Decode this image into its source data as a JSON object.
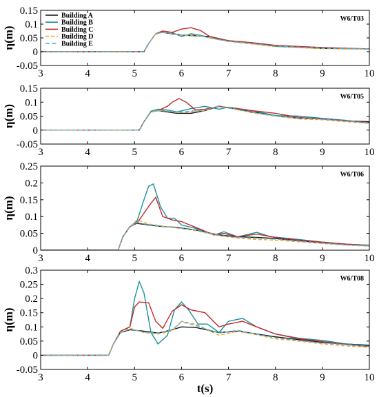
{
  "colors": {
    "Building A": "#111111",
    "Building B": "#1a8f9a",
    "Building C": "#c62828",
    "Building D": "#f5a623",
    "Building E": "#4fb3d9"
  },
  "legend_labels": [
    "Building A",
    "Building B",
    "Building C",
    "Building D",
    "Building E"
  ],
  "chart_data": [
    {
      "type": "line",
      "tag": "W6/T03",
      "xlabel": "",
      "ylabel": "η(m)",
      "xlim": [
        3,
        10
      ],
      "ylim": [
        -0.05,
        0.15
      ],
      "xticks": [
        "3",
        "4",
        "5",
        "6",
        "7",
        "8",
        "9",
        "10"
      ],
      "yticks": [
        "-0.05",
        "0",
        "0.05",
        "0.1",
        "0.15"
      ],
      "ytick_values": [
        -0.05,
        0,
        0.05,
        0.1,
        0.15
      ],
      "legend": "top-left",
      "series": [
        {
          "name": "Building A",
          "x": [
            3,
            5.2,
            5.3,
            5.45,
            5.6,
            5.8,
            6.0,
            6.3,
            6.6,
            7.0,
            7.5,
            8.0,
            9.0,
            10.0
          ],
          "y": [
            0,
            0,
            0.03,
            0.065,
            0.07,
            0.065,
            0.06,
            0.058,
            0.055,
            0.04,
            0.03,
            0.02,
            0.012,
            0.01
          ]
        },
        {
          "name": "Building B",
          "x": [
            3,
            5.2,
            5.3,
            5.45,
            5.6,
            5.8,
            6.0,
            6.2,
            6.4,
            6.6,
            7.0,
            7.5,
            8.0,
            9.0,
            10.0
          ],
          "y": [
            0,
            0,
            0.03,
            0.065,
            0.075,
            0.07,
            0.055,
            0.065,
            0.06,
            0.05,
            0.038,
            0.03,
            0.02,
            0.015,
            0.01
          ]
        },
        {
          "name": "Building C",
          "x": [
            3,
            5.2,
            5.3,
            5.45,
            5.6,
            5.8,
            6.0,
            6.2,
            6.4,
            6.6,
            7.0,
            7.5,
            8.0,
            9.0,
            10.0
          ],
          "y": [
            0,
            0,
            0.03,
            0.065,
            0.075,
            0.07,
            0.082,
            0.087,
            0.077,
            0.055,
            0.04,
            0.033,
            0.023,
            0.015,
            0.01
          ]
        },
        {
          "name": "Building D",
          "x": [
            3,
            5.2,
            5.3,
            5.45,
            5.6,
            5.8,
            6.0,
            6.3,
            6.6,
            7.0,
            7.5,
            8.0,
            9.0,
            10.0
          ],
          "y": [
            0,
            0,
            0.03,
            0.065,
            0.07,
            0.066,
            0.058,
            0.06,
            0.05,
            0.037,
            0.028,
            0.018,
            0.011,
            0.009
          ]
        },
        {
          "name": "Building E",
          "x": [
            3,
            5.2,
            5.3,
            5.45,
            5.6,
            5.8,
            6.0,
            6.3,
            6.6,
            7.0,
            7.5,
            8.0,
            9.0,
            10.0
          ],
          "y": [
            0,
            0,
            0.03,
            0.065,
            0.07,
            0.067,
            0.06,
            0.062,
            0.05,
            0.038,
            0.03,
            0.02,
            0.013,
            0.01
          ]
        }
      ]
    },
    {
      "type": "line",
      "tag": "W6/T05",
      "xlabel": "",
      "ylabel": "η(m)",
      "xlim": [
        3,
        10
      ],
      "ylim": [
        -0.05,
        0.15
      ],
      "xticks": [
        "3",
        "4",
        "5",
        "6",
        "7",
        "8",
        "9",
        "10"
      ],
      "yticks": [
        "-0.05",
        "0",
        "0.05",
        "0.1",
        "0.15"
      ],
      "ytick_values": [
        -0.05,
        0,
        0.05,
        0.1,
        0.15
      ],
      "series": [
        {
          "name": "Building A",
          "x": [
            3,
            5.1,
            5.2,
            5.35,
            5.5,
            5.7,
            5.9,
            6.2,
            6.5,
            6.8,
            7.0,
            7.5,
            8.0,
            8.5,
            9.0,
            9.5,
            10.0
          ],
          "y": [
            0,
            0,
            0.03,
            0.065,
            0.07,
            0.065,
            0.06,
            0.06,
            0.07,
            0.085,
            0.08,
            0.065,
            0.052,
            0.042,
            0.04,
            0.033,
            0.03
          ]
        },
        {
          "name": "Building B",
          "x": [
            3,
            5.1,
            5.2,
            5.35,
            5.5,
            5.7,
            5.9,
            6.2,
            6.5,
            6.8,
            7.0,
            7.5,
            8.0,
            8.5,
            9.0,
            9.5,
            10.0
          ],
          "y": [
            0,
            0,
            0.03,
            0.068,
            0.075,
            0.072,
            0.065,
            0.077,
            0.085,
            0.075,
            0.082,
            0.07,
            0.052,
            0.05,
            0.042,
            0.035,
            0.025
          ]
        },
        {
          "name": "Building C",
          "x": [
            3,
            5.1,
            5.2,
            5.35,
            5.5,
            5.7,
            5.8,
            5.95,
            6.1,
            6.3,
            6.5,
            6.8,
            7.0,
            7.5,
            8.0,
            8.5,
            9.0,
            9.5,
            10.0
          ],
          "y": [
            0,
            0,
            0.03,
            0.065,
            0.07,
            0.085,
            0.1,
            0.113,
            0.1,
            0.072,
            0.075,
            0.085,
            0.08,
            0.07,
            0.06,
            0.045,
            0.04,
            0.033,
            0.027
          ]
        },
        {
          "name": "Building D",
          "x": [
            3,
            5.1,
            5.2,
            5.35,
            5.5,
            5.7,
            5.9,
            6.2,
            6.5,
            6.8,
            7.0,
            7.5,
            8.0,
            8.5,
            9.0,
            9.5,
            10.0
          ],
          "y": [
            0,
            0,
            0.03,
            0.065,
            0.07,
            0.068,
            0.062,
            0.065,
            0.07,
            0.088,
            0.08,
            0.062,
            0.05,
            0.04,
            0.037,
            0.03,
            0.024
          ]
        },
        {
          "name": "Building E",
          "x": [
            3,
            5.1,
            5.2,
            5.35,
            5.5,
            5.7,
            5.9,
            6.2,
            6.5,
            6.8,
            7.0,
            7.5,
            8.0,
            8.5,
            9.0,
            9.5,
            10.0
          ],
          "y": [
            0,
            0,
            0.03,
            0.065,
            0.07,
            0.07,
            0.063,
            0.068,
            0.072,
            0.086,
            0.079,
            0.064,
            0.051,
            0.043,
            0.039,
            0.032,
            0.026
          ]
        }
      ]
    },
    {
      "type": "line",
      "tag": "W6/T06",
      "xlabel": "",
      "ylabel": "η(m)",
      "xlim": [
        3,
        10
      ],
      "ylim": [
        0,
        0.25
      ],
      "xticks": [
        "3",
        "4",
        "5",
        "6",
        "7",
        "8",
        "9",
        "10"
      ],
      "yticks": [
        "0",
        "0.05",
        "0.1",
        "0.15",
        "0.2",
        "0.25"
      ],
      "ytick_values": [
        0,
        0.05,
        0.1,
        0.15,
        0.2,
        0.25
      ],
      "series": [
        {
          "name": "Building A",
          "x": [
            3,
            4.65,
            4.75,
            4.9,
            5.05,
            5.3,
            5.6,
            5.9,
            6.3,
            6.8,
            7.2,
            7.6,
            8.0,
            8.5,
            9.0,
            9.5,
            10.0
          ],
          "y": [
            0,
            0,
            0.04,
            0.07,
            0.08,
            0.075,
            0.07,
            0.068,
            0.06,
            0.045,
            0.04,
            0.038,
            0.035,
            0.028,
            0.022,
            0.017,
            0.014
          ]
        },
        {
          "name": "Building B",
          "x": [
            3,
            4.65,
            4.75,
            4.9,
            5.05,
            5.2,
            5.3,
            5.4,
            5.55,
            5.7,
            5.85,
            6.0,
            6.3,
            6.7,
            6.9,
            7.2,
            7.6,
            7.9,
            8.5,
            9.0,
            9.5,
            10.0
          ],
          "y": [
            0,
            0,
            0.04,
            0.07,
            0.085,
            0.15,
            0.19,
            0.197,
            0.13,
            0.095,
            0.095,
            0.075,
            0.065,
            0.045,
            0.055,
            0.04,
            0.053,
            0.04,
            0.032,
            0.024,
            0.018,
            0.015
          ]
        },
        {
          "name": "Building C",
          "x": [
            3,
            4.65,
            4.75,
            4.9,
            5.05,
            5.2,
            5.35,
            5.45,
            5.6,
            5.8,
            6.0,
            6.3,
            6.7,
            6.9,
            7.2,
            7.6,
            8.0,
            8.5,
            9.0,
            9.5,
            10.0
          ],
          "y": [
            0,
            0,
            0.04,
            0.07,
            0.08,
            0.11,
            0.14,
            0.157,
            0.1,
            0.09,
            0.085,
            0.068,
            0.045,
            0.05,
            0.04,
            0.048,
            0.038,
            0.03,
            0.024,
            0.018,
            0.014
          ]
        },
        {
          "name": "Building D",
          "x": [
            3,
            4.65,
            4.75,
            4.9,
            5.05,
            5.3,
            5.6,
            5.9,
            6.3,
            6.8,
            7.2,
            7.6,
            8.0,
            8.5,
            9.0,
            9.5,
            10.0
          ],
          "y": [
            0,
            0,
            0.04,
            0.07,
            0.09,
            0.078,
            0.072,
            0.066,
            0.058,
            0.043,
            0.036,
            0.032,
            0.03,
            0.025,
            0.02,
            0.015,
            0.012
          ]
        },
        {
          "name": "Building E",
          "x": [
            3,
            4.65,
            4.75,
            4.9,
            5.05,
            5.3,
            5.6,
            5.9,
            6.3,
            6.8,
            7.2,
            7.6,
            8.0,
            8.5,
            9.0,
            9.5,
            10.0
          ],
          "y": [
            0,
            0,
            0.04,
            0.07,
            0.082,
            0.076,
            0.07,
            0.067,
            0.06,
            0.044,
            0.038,
            0.036,
            0.033,
            0.027,
            0.021,
            0.016,
            0.013
          ]
        }
      ]
    },
    {
      "type": "line",
      "tag": "W6/T08",
      "xlabel": "t(s)",
      "ylabel": "η(m)",
      "xlim": [
        3,
        10
      ],
      "ylim": [
        -0.05,
        0.3
      ],
      "xticks": [
        "3",
        "4",
        "5",
        "6",
        "7",
        "8",
        "9",
        "10"
      ],
      "yticks": [
        "-0.05",
        "0",
        "0.05",
        "0.1",
        "0.15",
        "0.2",
        "0.25",
        "0.3"
      ],
      "ytick_values": [
        -0.05,
        0,
        0.05,
        0.1,
        0.15,
        0.2,
        0.25,
        0.3
      ],
      "series": [
        {
          "name": "Building A",
          "x": [
            3,
            4.45,
            4.55,
            4.7,
            4.9,
            5.2,
            5.5,
            5.8,
            6.0,
            6.3,
            6.8,
            7.2,
            7.6,
            8.0,
            8.5,
            9.0,
            9.5,
            10.0
          ],
          "y": [
            0,
            0,
            0.04,
            0.08,
            0.09,
            0.085,
            0.078,
            0.09,
            0.1,
            0.098,
            0.08,
            0.085,
            0.075,
            0.065,
            0.055,
            0.045,
            0.04,
            0.035
          ]
        },
        {
          "name": "Building B",
          "x": [
            3,
            4.45,
            4.55,
            4.7,
            4.9,
            5.0,
            5.1,
            5.2,
            5.35,
            5.5,
            5.7,
            5.85,
            6.0,
            6.15,
            6.35,
            6.55,
            6.8,
            7.0,
            7.3,
            7.6,
            8.0,
            8.5,
            9.0,
            9.5,
            10.0
          ],
          "y": [
            0,
            0,
            0.04,
            0.085,
            0.1,
            0.2,
            0.26,
            0.22,
            0.08,
            0.04,
            0.07,
            0.16,
            0.188,
            0.16,
            0.11,
            0.11,
            0.08,
            0.12,
            0.13,
            0.1,
            0.075,
            0.06,
            0.052,
            0.04,
            0.032
          ]
        },
        {
          "name": "Building C",
          "x": [
            3,
            4.45,
            4.55,
            4.7,
            4.9,
            5.0,
            5.1,
            5.3,
            5.45,
            5.6,
            5.8,
            6.0,
            6.2,
            6.5,
            6.8,
            7.0,
            7.3,
            7.6,
            8.0,
            8.5,
            9.0,
            9.5,
            10.0
          ],
          "y": [
            0,
            0,
            0.04,
            0.085,
            0.1,
            0.17,
            0.188,
            0.185,
            0.12,
            0.095,
            0.155,
            0.178,
            0.16,
            0.15,
            0.1,
            0.11,
            0.12,
            0.1,
            0.075,
            0.058,
            0.048,
            0.038,
            0.03
          ]
        },
        {
          "name": "Building D",
          "x": [
            3,
            4.45,
            4.55,
            4.7,
            4.9,
            5.2,
            5.5,
            5.8,
            6.0,
            6.3,
            6.8,
            7.2,
            7.6,
            8.0,
            8.5,
            9.0,
            9.5,
            10.0
          ],
          "y": [
            0,
            0,
            0.04,
            0.082,
            0.095,
            0.08,
            0.075,
            0.085,
            0.12,
            0.11,
            0.07,
            0.085,
            0.072,
            0.058,
            0.05,
            0.04,
            0.033,
            0.028
          ]
        },
        {
          "name": "Building E",
          "x": [
            3,
            4.45,
            4.55,
            4.7,
            4.9,
            5.2,
            5.5,
            5.8,
            6.0,
            6.3,
            6.8,
            7.2,
            7.6,
            8.0,
            8.5,
            9.0,
            9.5,
            10.0
          ],
          "y": [
            0,
            0,
            0.04,
            0.08,
            0.092,
            0.082,
            0.077,
            0.09,
            0.118,
            0.105,
            0.078,
            0.088,
            0.074,
            0.062,
            0.052,
            0.043,
            0.037,
            0.031
          ]
        }
      ]
    }
  ]
}
